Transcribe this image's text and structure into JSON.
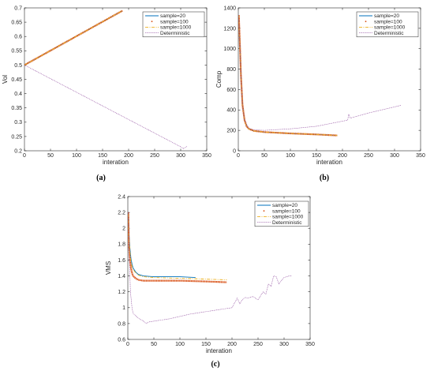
{
  "chart_data": [
    {
      "type": "line",
      "panel_label": "(a)",
      "xlabel": "interation",
      "ylabel": "Vol",
      "xlim": [
        0,
        350
      ],
      "ylim": [
        0.2,
        0.7
      ],
      "xticks": [
        0,
        50,
        100,
        150,
        200,
        250,
        300,
        350
      ],
      "yticks": [
        0.2,
        0.25,
        0.3,
        0.35,
        0.4,
        0.45,
        0.5,
        0.55,
        0.6,
        0.65,
        0.7
      ],
      "grid": false,
      "legend": "top-right",
      "series": [
        {
          "name": "sample=20",
          "color": "#0072BD",
          "style": "solid",
          "x": [
            0,
            188
          ],
          "y": [
            0.5,
            0.69
          ]
        },
        {
          "name": "sample=100",
          "color": "#D95319",
          "style": "dots",
          "x": [
            0,
            188
          ],
          "y": [
            0.5,
            0.69
          ]
        },
        {
          "name": "sample=1000",
          "color": "#EDB120",
          "style": "dashdot",
          "x": [
            0,
            188
          ],
          "y": [
            0.5,
            0.69
          ]
        },
        {
          "name": "Deterministic",
          "color": "#7E2F8E",
          "style": "dotted",
          "x": [
            0,
            300,
            305,
            312
          ],
          "y": [
            0.5,
            0.214,
            0.208,
            0.215
          ]
        }
      ]
    },
    {
      "type": "line",
      "panel_label": "(b)",
      "xlabel": "interation",
      "ylabel": "Comp",
      "xlim": [
        0,
        350
      ],
      "ylim": [
        0,
        1400
      ],
      "xticks": [
        0,
        50,
        100,
        150,
        200,
        250,
        300,
        350
      ],
      "yticks": [
        0,
        200,
        400,
        600,
        800,
        1000,
        1200,
        1400
      ],
      "grid": false,
      "legend": "top-right",
      "series": [
        {
          "name": "sample=20",
          "color": "#0072BD",
          "style": "solid",
          "x": [
            1,
            3,
            5,
            8,
            12,
            16,
            20,
            30,
            50,
            100,
            150,
            190
          ],
          "y": [
            1330,
            1050,
            750,
            450,
            300,
            240,
            215,
            195,
            183,
            170,
            160,
            150
          ]
        },
        {
          "name": "sample=100",
          "color": "#D95319",
          "style": "dots",
          "x": [
            1,
            3,
            5,
            8,
            12,
            16,
            20,
            30,
            50,
            100,
            150,
            190
          ],
          "y": [
            1330,
            1050,
            750,
            450,
            300,
            240,
            215,
            195,
            183,
            170,
            160,
            150
          ]
        },
        {
          "name": "sample=1000",
          "color": "#EDB120",
          "style": "dashdot",
          "x": [
            1,
            3,
            5,
            8,
            12,
            16,
            20,
            30,
            50,
            100,
            150,
            190
          ],
          "y": [
            1330,
            1050,
            750,
            450,
            300,
            240,
            215,
            195,
            183,
            170,
            160,
            150
          ]
        },
        {
          "name": "Deterministic",
          "color": "#7E2F8E",
          "style": "dotted",
          "x": [
            1,
            3,
            5,
            8,
            12,
            20,
            30,
            50,
            100,
            150,
            200,
            210,
            212,
            215,
            250,
            300,
            312
          ],
          "y": [
            1330,
            1050,
            750,
            450,
            300,
            220,
            205,
            200,
            215,
            240,
            290,
            300,
            360,
            320,
            370,
            430,
            445
          ]
        }
      ]
    },
    {
      "type": "line",
      "panel_label": "(c)",
      "xlabel": "interation",
      "ylabel": "VMS",
      "xlim": [
        0,
        350
      ],
      "ylim": [
        0.6,
        2.4
      ],
      "xticks": [
        0,
        50,
        100,
        150,
        200,
        250,
        300,
        350
      ],
      "yticks": [
        0.6,
        0.8,
        1,
        1.2,
        1.4,
        1.6,
        1.8,
        2,
        2.2,
        2.4
      ],
      "grid": false,
      "legend": "top-right",
      "series": [
        {
          "name": "sample=20",
          "color": "#0072BD",
          "style": "solid",
          "x": [
            1,
            2,
            4,
            6,
            8,
            10,
            15,
            20,
            30,
            50,
            80,
            100,
            130
          ],
          "y": [
            2.2,
            1.95,
            1.75,
            1.62,
            1.55,
            1.5,
            1.45,
            1.42,
            1.4,
            1.39,
            1.39,
            1.39,
            1.38
          ]
        },
        {
          "name": "sample=100",
          "color": "#D95319",
          "style": "dots",
          "x": [
            1,
            2,
            4,
            6,
            8,
            10,
            15,
            20,
            30,
            50,
            100,
            150,
            190
          ],
          "y": [
            2.2,
            1.8,
            1.6,
            1.5,
            1.44,
            1.4,
            1.37,
            1.35,
            1.34,
            1.34,
            1.34,
            1.33,
            1.32
          ]
        },
        {
          "name": "sample=1000",
          "color": "#EDB120",
          "style": "dashdot",
          "x": [
            1,
            2,
            4,
            6,
            8,
            10,
            15,
            20,
            30,
            50,
            100,
            150,
            190
          ],
          "y": [
            2.18,
            1.9,
            1.7,
            1.58,
            1.52,
            1.48,
            1.44,
            1.41,
            1.39,
            1.38,
            1.37,
            1.36,
            1.35
          ]
        },
        {
          "name": "Deterministic",
          "color": "#7E2F8E",
          "style": "dotted",
          "x": [
            1,
            3,
            5,
            8,
            10,
            15,
            20,
            30,
            35,
            40,
            50,
            60,
            80,
            100,
            120,
            140,
            160,
            180,
            200,
            210,
            215,
            220,
            225,
            230,
            240,
            250,
            255,
            260,
            265,
            270,
            275,
            280,
            285,
            290,
            300,
            310,
            315
          ],
          "y": [
            2.2,
            1.6,
            1.2,
            1.0,
            0.93,
            0.9,
            0.87,
            0.83,
            0.8,
            0.82,
            0.83,
            0.84,
            0.86,
            0.89,
            0.92,
            0.94,
            0.96,
            0.98,
            1.0,
            1.12,
            1.05,
            1.1,
            1.13,
            1.12,
            1.14,
            1.1,
            1.15,
            1.2,
            1.17,
            1.3,
            1.27,
            1.4,
            1.39,
            1.3,
            1.38,
            1.4,
            1.4
          ]
        }
      ]
    }
  ]
}
